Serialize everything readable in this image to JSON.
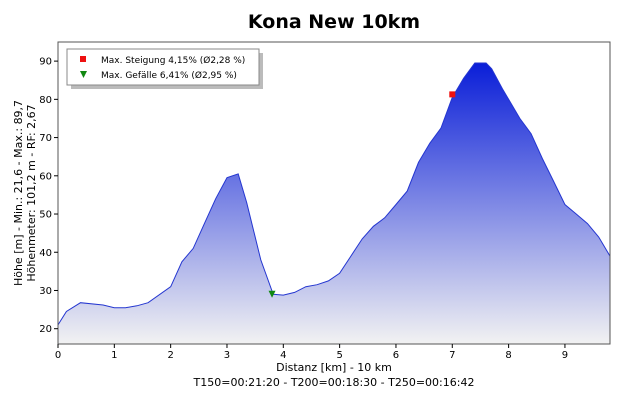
{
  "chart_data": {
    "type": "area",
    "title": "Kona New 10km",
    "xlabel": "Distanz [km] - 10 km",
    "footer": "T150=00:21:20 - T200=00:18:30 - T250=00:16:42",
    "ylabel_lines": [
      "Höhe [m] - Min.: 21,6 - Max.: 89,7",
      "Höhenmeter: 101,2 m - RF: 2,67"
    ],
    "xlim": [
      0,
      9.8
    ],
    "ylim": [
      16,
      95
    ],
    "xticks": [
      0,
      1,
      2,
      3,
      4,
      5,
      6,
      7,
      8,
      9
    ],
    "yticks": [
      20,
      30,
      40,
      50,
      60,
      70,
      80,
      90
    ],
    "grid": false,
    "legend_position": "top-left",
    "colors": {
      "fill_top": "#0a1ed8",
      "fill_bottom": "#f2f2f2",
      "line": "#2436d0",
      "grade_up": "#ee1111",
      "grade_down": "#118811"
    },
    "series": [
      {
        "x": [
          0,
          0.15,
          0.4,
          0.8,
          1.0,
          1.2,
          1.4,
          1.6,
          2.0,
          2.2,
          2.4,
          2.6,
          2.8,
          3.0,
          3.2,
          3.35,
          3.6,
          3.82,
          4.0,
          4.2,
          4.4,
          4.6,
          4.8,
          5.0,
          5.2,
          5.4,
          5.6,
          5.8,
          6.0,
          6.2,
          6.4,
          6.6,
          6.8,
          7.0,
          7.2,
          7.4,
          7.6,
          7.7,
          7.9,
          8.2,
          8.4,
          8.6,
          8.8,
          9.0,
          9.2,
          9.4,
          9.6,
          9.8
        ],
        "y": [
          21,
          24.5,
          26.8,
          26.2,
          25.5,
          25.5,
          26,
          26.8,
          31,
          37.5,
          41,
          47.5,
          54,
          59.5,
          60.5,
          53,
          38,
          29,
          28.8,
          29.5,
          31,
          31.5,
          32.5,
          34.5,
          39,
          43.5,
          46.8,
          49,
          52.5,
          56,
          63.5,
          68.5,
          72.5,
          80.5,
          85.5,
          89.5,
          89.5,
          88,
          82.5,
          75,
          71,
          64.5,
          58.5,
          52.5,
          50,
          47.5,
          44,
          39
        ]
      }
    ],
    "markers": [
      {
        "label": "Max. Steigung 4,15% (Ø2,28 %)",
        "x": 7.0,
        "y": 81.3,
        "shape": "square"
      },
      {
        "label": "Max. Gefälle 6,41% (Ø2,95 %)",
        "x": 3.8,
        "y": 29.0,
        "shape": "triangle-down"
      }
    ]
  }
}
